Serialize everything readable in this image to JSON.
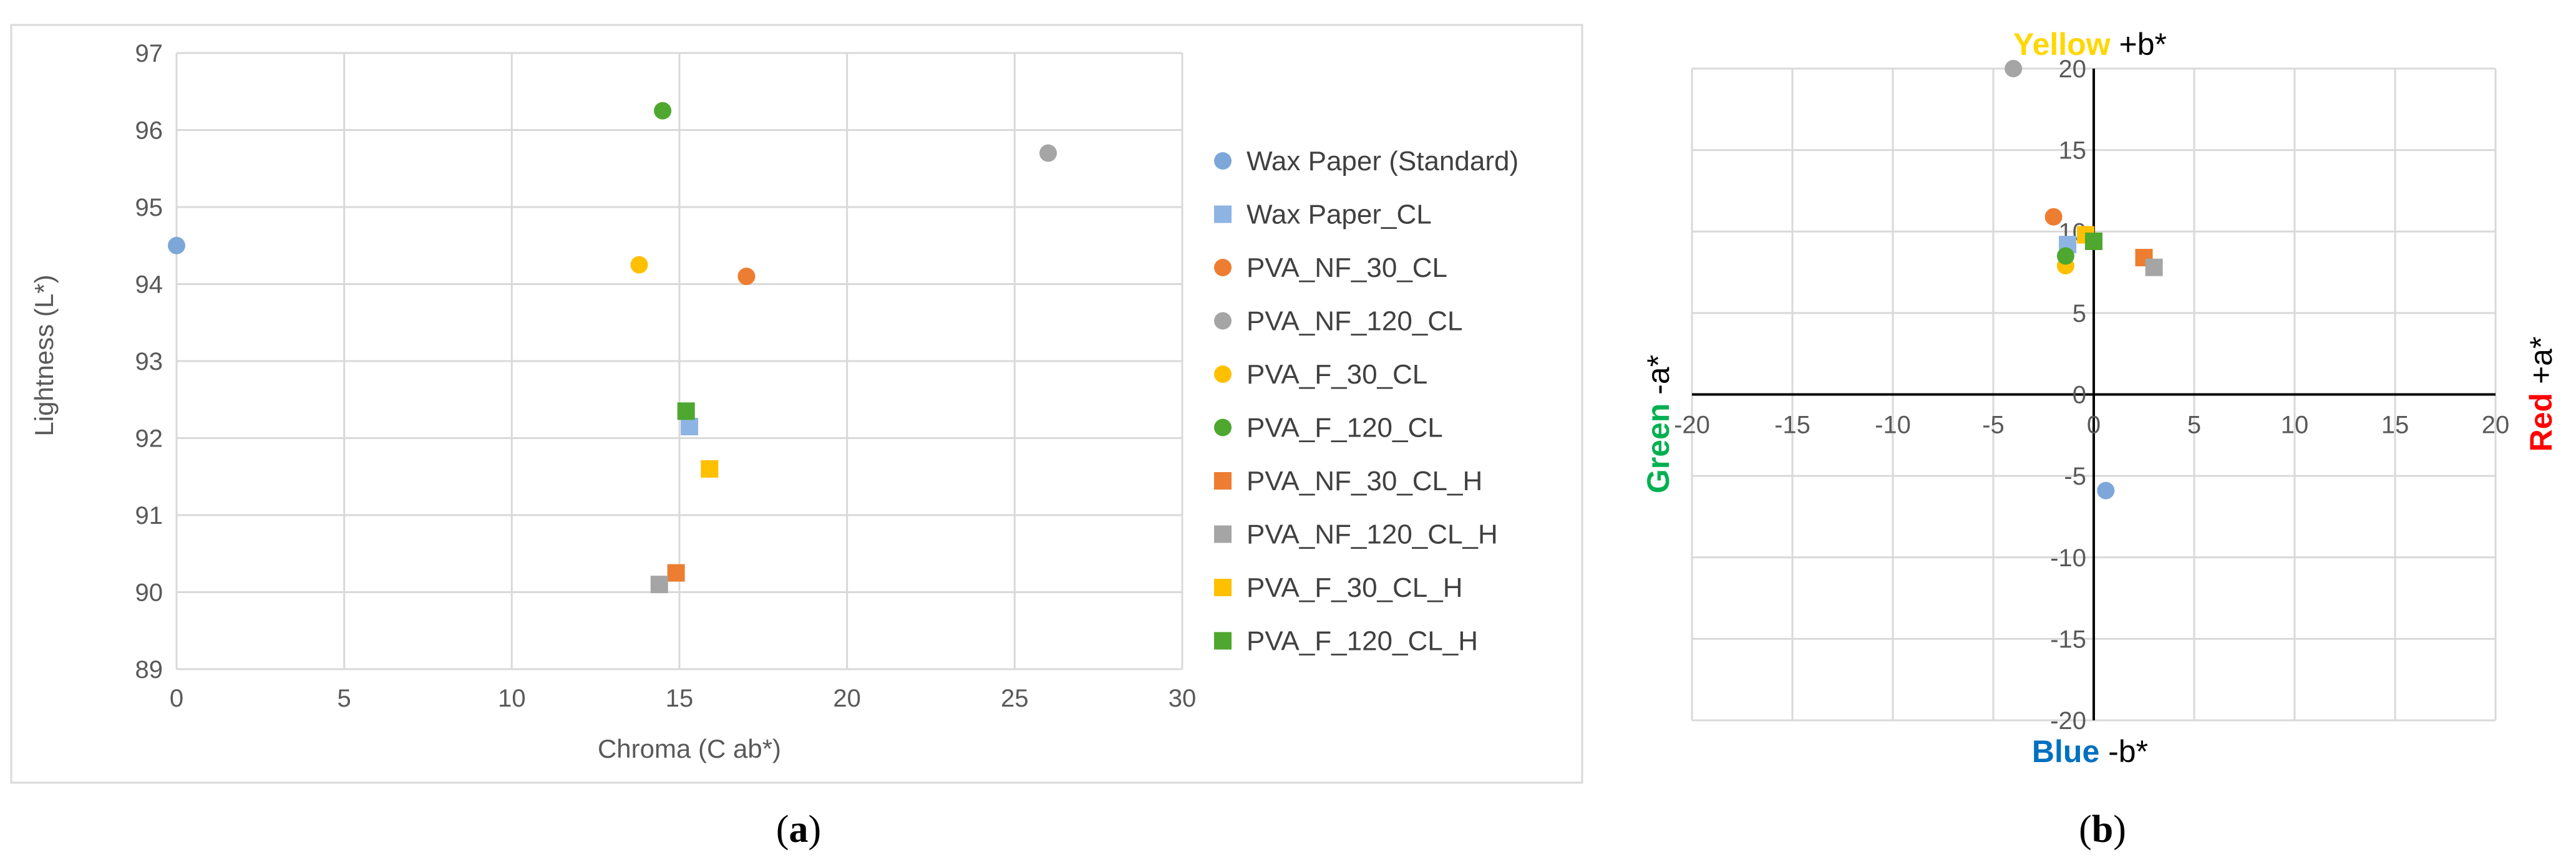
{
  "colors": {
    "Wax Paper (Standard)": "#7da7d9",
    "Wax Paper_CL": "#8eb4e3",
    "PVA_NF_30_CL": "#ed7d31",
    "PVA_NF_120_CL": "#a5a5a5",
    "PVA_F_30_CL": "#ffc000",
    "PVA_F_120_CL": "#4ea72e",
    "PVA_NF_30_CL_H": "#ed7d31",
    "PVA_NF_120_CL_H": "#a5a5a5",
    "PVA_F_30_CL_H": "#ffc000",
    "PVA_F_120_CL_H": "#4ea72e",
    "quad_yellow": "#ffd700",
    "quad_red": "#ff0000",
    "quad_green": "#00b050",
    "quad_blue": "#0070c0"
  },
  "chart_data": [
    {
      "type": "scatter",
      "xlabel": "Chroma (C ab*)",
      "ylabel": "Lightness (L*)",
      "xlim": [
        0,
        30
      ],
      "ylim": [
        89,
        97
      ],
      "xticks": [
        "0",
        "5",
        "10",
        "15",
        "20",
        "25",
        "30"
      ],
      "yticks": [
        "89",
        "90",
        "91",
        "92",
        "93",
        "94",
        "95",
        "96",
        "97"
      ],
      "grid": true,
      "legend_position": "right",
      "caption_label": "a",
      "series": [
        {
          "name": "Wax Paper (Standard)",
          "marker": "circle",
          "x": [
            0.0
          ],
          "y": [
            94.5
          ]
        },
        {
          "name": "Wax Paper_CL",
          "marker": "square",
          "x": [
            15.3
          ],
          "y": [
            92.15
          ]
        },
        {
          "name": "PVA_NF_30_CL",
          "marker": "circle",
          "x": [
            17.0
          ],
          "y": [
            94.1
          ]
        },
        {
          "name": "PVA_NF_120_CL",
          "marker": "circle",
          "x": [
            26.0
          ],
          "y": [
            95.7
          ]
        },
        {
          "name": "PVA_F_30_CL",
          "marker": "circle",
          "x": [
            13.8
          ],
          "y": [
            94.25
          ]
        },
        {
          "name": "PVA_F_120_CL",
          "marker": "circle",
          "x": [
            14.5
          ],
          "y": [
            96.25
          ]
        },
        {
          "name": "PVA_NF_30_CL_H",
          "marker": "square",
          "x": [
            14.9
          ],
          "y": [
            90.25
          ]
        },
        {
          "name": "PVA_NF_120_CL_H",
          "marker": "square",
          "x": [
            14.4
          ],
          "y": [
            90.1
          ]
        },
        {
          "name": "PVA_F_30_CL_H",
          "marker": "square",
          "x": [
            15.9
          ],
          "y": [
            91.6
          ]
        },
        {
          "name": "PVA_F_120_CL_H",
          "marker": "square",
          "x": [
            15.2
          ],
          "y": [
            92.35
          ]
        }
      ]
    },
    {
      "type": "scatter",
      "xlim": [
        -20,
        20
      ],
      "ylim": [
        -20,
        20
      ],
      "xticks": [
        "-20",
        "-15",
        "-10",
        "-5",
        "0",
        "5",
        "10",
        "15",
        "20"
      ],
      "yticks": [
        "-20",
        "-15",
        "-10",
        "-5",
        "0",
        "5",
        "10",
        "15",
        "20"
      ],
      "grid": true,
      "caption_label": "b",
      "axis_labels": {
        "top_word": "Yellow",
        "top_rest": " +b*",
        "bottom_word": "Blue",
        "bottom_rest": " -b*",
        "left_word": "Green",
        "left_rest": " -a*",
        "right_word": "Red",
        "right_rest": " +a*"
      },
      "series": [
        {
          "name": "Wax Paper (Standard)",
          "marker": "circle",
          "x": [
            0.6
          ],
          "y": [
            -5.9
          ]
        },
        {
          "name": "Wax Paper_CL",
          "marker": "square",
          "x": [
            -1.3
          ],
          "y": [
            9.2
          ]
        },
        {
          "name": "PVA_NF_30_CL",
          "marker": "circle",
          "x": [
            -2.0
          ],
          "y": [
            10.9
          ]
        },
        {
          "name": "PVA_NF_120_CL",
          "marker": "circle",
          "x": [
            -4.0
          ],
          "y": [
            20.0
          ]
        },
        {
          "name": "PVA_F_30_CL",
          "marker": "circle",
          "x": [
            -1.4
          ],
          "y": [
            7.9
          ]
        },
        {
          "name": "PVA_F_120_CL",
          "marker": "circle",
          "x": [
            -1.4
          ],
          "y": [
            8.5
          ]
        },
        {
          "name": "PVA_NF_30_CL_H",
          "marker": "square",
          "x": [
            2.5
          ],
          "y": [
            8.4
          ]
        },
        {
          "name": "PVA_NF_120_CL_H",
          "marker": "square",
          "x": [
            3.0
          ],
          "y": [
            7.8
          ]
        },
        {
          "name": "PVA_F_30_CL_H",
          "marker": "square",
          "x": [
            -0.4
          ],
          "y": [
            9.8
          ]
        },
        {
          "name": "PVA_F_120_CL_H",
          "marker": "square",
          "x": [
            0.0
          ],
          "y": [
            9.4
          ]
        }
      ]
    }
  ]
}
